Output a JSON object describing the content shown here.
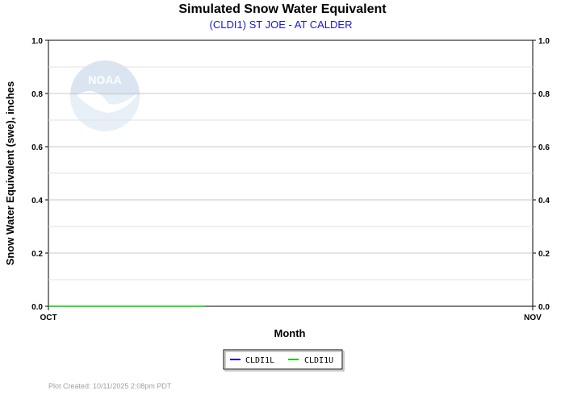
{
  "chart_data": {
    "type": "line",
    "title": "Simulated Snow Water Equivalent",
    "subtitle": "(CLDI1) ST JOE - AT CALDER",
    "xlabel": "Month",
    "ylabel": "Snow Water Equivalent (swe),  inches",
    "x_ticks": [
      "OCT",
      "NOV"
    ],
    "y_ticks": [
      "0.0",
      "0.2",
      "0.4",
      "0.6",
      "0.8",
      "1.0"
    ],
    "ylim": [
      0,
      1
    ],
    "x_range_days": [
      0,
      31
    ],
    "grid": true,
    "legend_position": "bottom-center",
    "series": [
      {
        "name": "CLDI1L",
        "color": "#0000cc",
        "x": [],
        "y": []
      },
      {
        "name": "CLDI1U",
        "color": "#00cc00",
        "x": [
          0,
          10
        ],
        "y": [
          0.0,
          0.0
        ]
      }
    ]
  },
  "watermark": {
    "text": "NOAA",
    "colors": {
      "top": "#c8d8ea",
      "bottom": "#d2e6f4"
    }
  },
  "footer": {
    "text": "Plot Created: 10/11/2025 2:08pm PDT"
  }
}
